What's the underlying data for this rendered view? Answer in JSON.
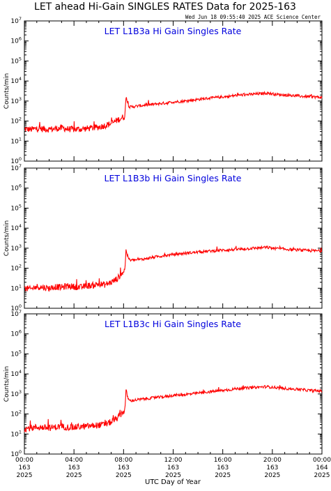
{
  "page": {
    "title": "LET ahead Hi-Gain SINGLES RATES Data for 2025-163",
    "timestamp": "Wed Jun 18 09:55:40 2025 ACE Science Center",
    "xlabel": "UTC Day of Year",
    "ylabel": "Counts/min"
  },
  "colors": {
    "series": "#ff0000",
    "panel_title": "#0000dd",
    "axes": "#000000"
  },
  "chart_data": [
    {
      "type": "line",
      "title": "LET L1B3a Hi Gain Singles Rate",
      "ylabel": "Counts/min",
      "yscale": "log",
      "ylim": [
        1,
        10000000
      ],
      "xlim": [
        0,
        24
      ],
      "ytick_exponents": [
        0,
        1,
        2,
        3,
        4,
        5,
        6,
        7
      ],
      "series": [
        {
          "x": [
            0,
            0.5,
            1,
            1.5,
            2,
            2.5,
            3,
            3.5,
            4,
            4.5,
            5,
            5.5,
            6,
            6.5,
            7,
            7.3,
            7.6,
            7.9,
            8.1,
            8.2,
            8.3,
            8.4,
            8.5,
            9,
            9.5,
            10,
            10.5,
            11,
            11.5,
            12,
            12.5,
            13,
            13.5,
            14,
            14.5,
            15,
            15.5,
            16,
            16.5,
            17,
            17.5,
            18,
            18.5,
            19,
            19.5,
            20,
            20.5,
            21,
            21.5,
            22,
            22.5,
            23,
            23.5,
            24
          ],
          "y": [
            40,
            38,
            42,
            40,
            38,
            42,
            45,
            40,
            38,
            40,
            42,
            45,
            50,
            60,
            75,
            95,
            120,
            150,
            170,
            1800,
            900,
            600,
            500,
            550,
            600,
            650,
            700,
            750,
            800,
            900,
            950,
            1000,
            1100,
            1200,
            1300,
            1400,
            1500,
            1600,
            1700,
            1900,
            2000,
            2100,
            2200,
            2300,
            2500,
            2300,
            2100,
            2000,
            1900,
            1800,
            1700,
            1650,
            1600,
            1500
          ]
        }
      ]
    },
    {
      "type": "line",
      "title": "LET L1B3b Hi Gain Singles Rate",
      "ylabel": "Counts/min",
      "yscale": "log",
      "ylim": [
        1,
        10000000
      ],
      "xlim": [
        0,
        24
      ],
      "ytick_exponents": [
        0,
        1,
        2,
        3,
        4,
        5,
        6,
        7
      ],
      "series": [
        {
          "x": [
            0,
            0.5,
            1,
            1.5,
            2,
            2.5,
            3,
            3.5,
            4,
            4.5,
            5,
            5.5,
            6,
            6.5,
            7,
            7.3,
            7.6,
            7.9,
            8.1,
            8.2,
            8.3,
            8.4,
            8.5,
            9,
            9.5,
            10,
            10.5,
            11,
            11.5,
            12,
            12.5,
            13,
            13.5,
            14,
            14.5,
            15,
            15.5,
            16,
            16.5,
            17,
            17.5,
            18,
            18.5,
            19,
            19.5,
            20,
            20.5,
            21,
            21.5,
            22,
            22.5,
            23,
            23.5,
            24
          ],
          "y": [
            10,
            9,
            12,
            11,
            10,
            12,
            11,
            13,
            12,
            11,
            13,
            14,
            16,
            15,
            20,
            25,
            35,
            60,
            80,
            900,
            450,
            320,
            250,
            260,
            280,
            320,
            360,
            400,
            440,
            480,
            520,
            560,
            600,
            640,
            680,
            720,
            760,
            800,
            820,
            860,
            900,
            950,
            1000,
            1050,
            1100,
            1000,
            950,
            900,
            850,
            800,
            780,
            760,
            740,
            720
          ]
        }
      ]
    },
    {
      "type": "line",
      "title": "LET L1B3c Hi Gain Singles Rate",
      "ylabel": "Counts/min",
      "yscale": "log",
      "ylim": [
        1,
        10000000
      ],
      "xlim": [
        0,
        24
      ],
      "ytick_exponents": [
        0,
        1,
        2,
        3,
        4,
        5,
        6,
        7
      ],
      "series": [
        {
          "x": [
            0,
            0.5,
            1,
            1.5,
            2,
            2.5,
            3,
            3.5,
            4,
            4.5,
            5,
            5.5,
            6,
            6.5,
            7,
            7.3,
            7.6,
            7.9,
            8.1,
            8.2,
            8.3,
            8.4,
            8.5,
            9,
            9.5,
            10,
            10.5,
            11,
            11.5,
            12,
            12.5,
            13,
            13.5,
            14,
            14.5,
            15,
            15.5,
            16,
            16.5,
            17,
            17.5,
            18,
            18.5,
            19,
            19.5,
            20,
            20.5,
            21,
            21.5,
            22,
            22.5,
            23,
            23.5,
            24
          ],
          "y": [
            18,
            20,
            22,
            21,
            20,
            22,
            24,
            22,
            21,
            23,
            24,
            26,
            28,
            30,
            40,
            50,
            70,
            120,
            150,
            1700,
            800,
            550,
            450,
            500,
            550,
            600,
            650,
            700,
            750,
            850,
            900,
            950,
            1000,
            1100,
            1200,
            1300,
            1400,
            1500,
            1600,
            1800,
            1900,
            2000,
            2100,
            2200,
            2300,
            2200,
            2000,
            1900,
            1800,
            1700,
            1600,
            1500,
            1450,
            1400
          ]
        }
      ]
    }
  ],
  "xaxis": {
    "ticks": [
      {
        "x": 0,
        "time": "00:00",
        "doy": "163",
        "year": "2025"
      },
      {
        "x": 4,
        "time": "04:00",
        "doy": "163",
        "year": "2025"
      },
      {
        "x": 8,
        "time": "08:00",
        "doy": "163",
        "year": "2025"
      },
      {
        "x": 12,
        "time": "12:00",
        "doy": "163",
        "year": "2025"
      },
      {
        "x": 16,
        "time": "16:00",
        "doy": "163",
        "year": "2025"
      },
      {
        "x": 20,
        "time": "20:00",
        "doy": "163",
        "year": "2025"
      },
      {
        "x": 24,
        "time": "00:00",
        "doy": "164",
        "year": "2025"
      }
    ]
  }
}
